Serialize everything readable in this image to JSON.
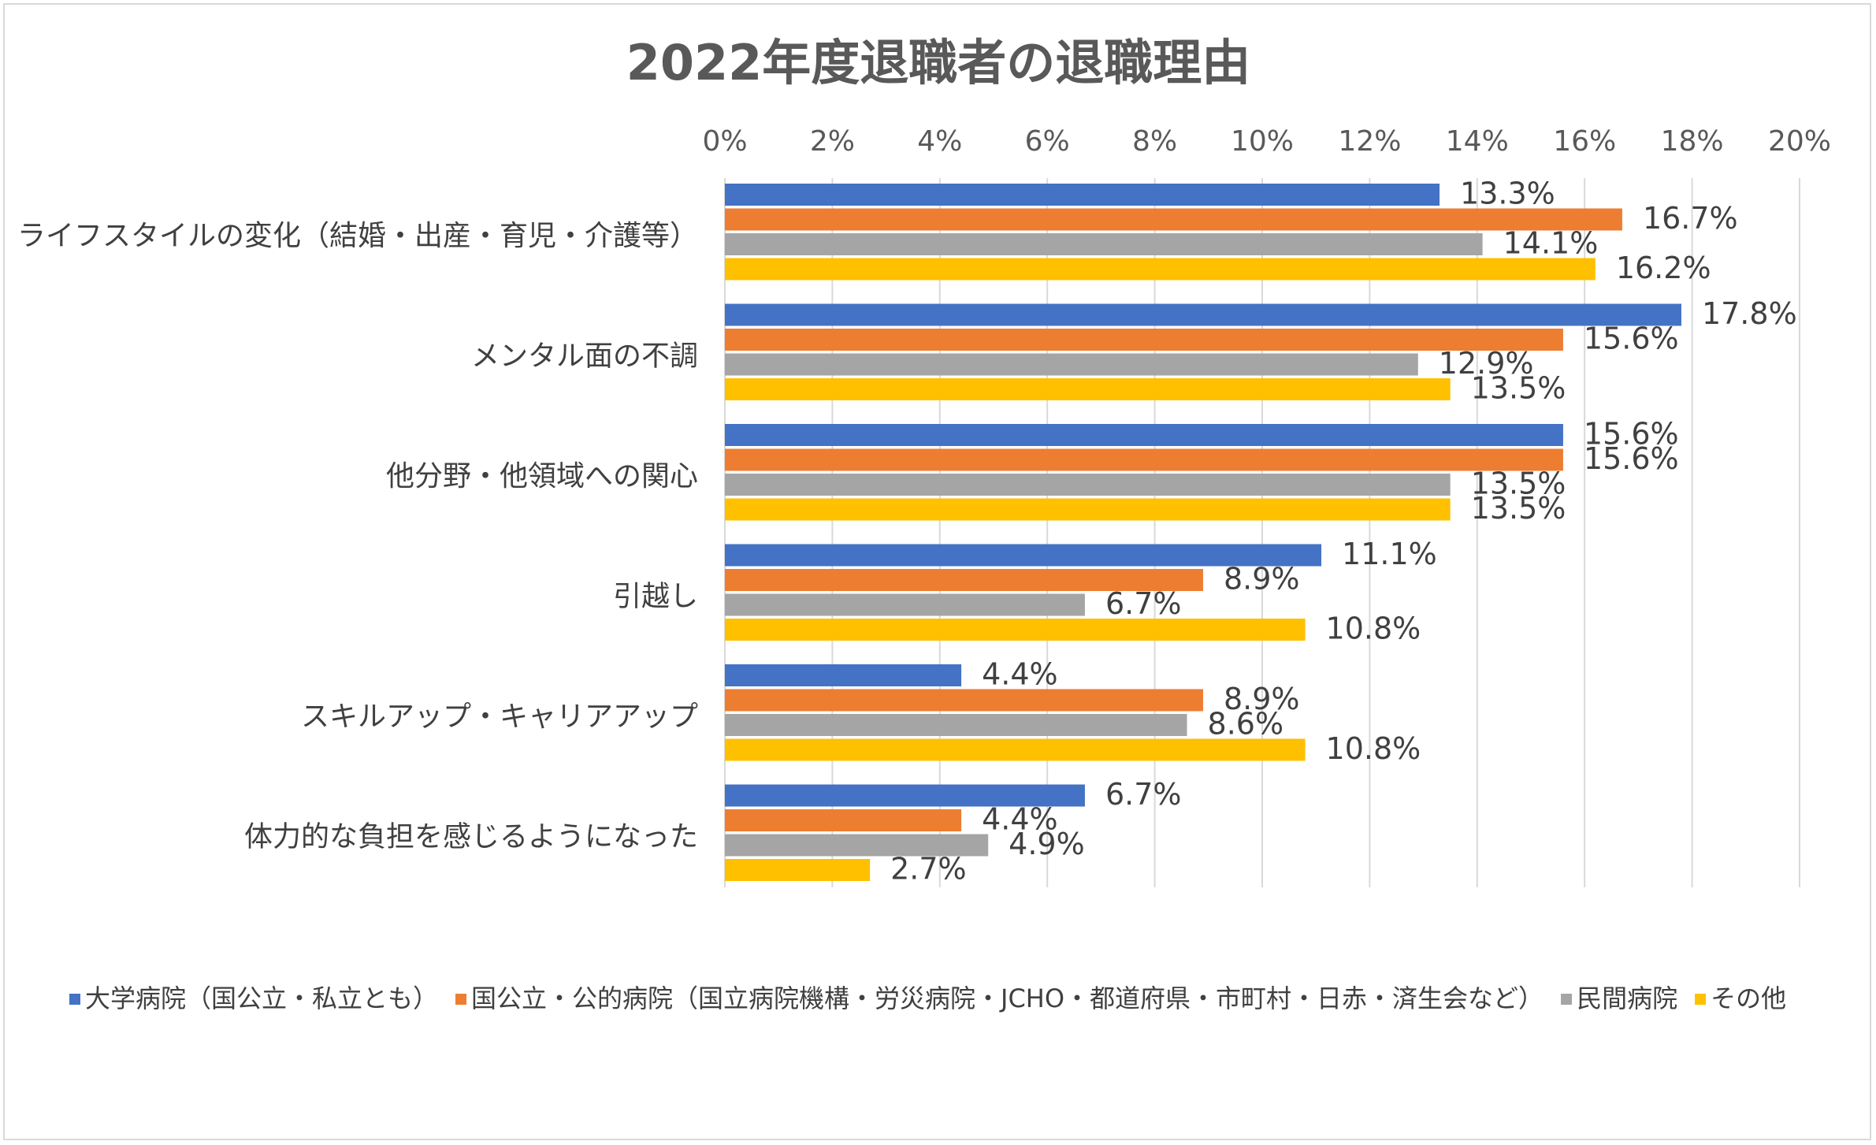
{
  "chart_data": {
    "type": "bar",
    "orientation": "horizontal",
    "title": "2022年度退職者の退職理由",
    "xlim": [
      0,
      20
    ],
    "xticks": [
      "0%",
      "2%",
      "4%",
      "6%",
      "8%",
      "10%",
      "12%",
      "14%",
      "16%",
      "18%",
      "20%"
    ],
    "grid": true,
    "legend_position": "bottom",
    "categories": [
      "ライフスタイルの変化（結婚・出産・育児・介護等）",
      "メンタル面の不調",
      "他分野・他領域への関心",
      "引越し",
      "スキルアップ・キャリアアップ",
      "体力的な負担を感じるようになった"
    ],
    "series": [
      {
        "name": "大学病院（国公立・私立とも）",
        "color": "#4472c4",
        "values": [
          13.3,
          17.8,
          15.6,
          11.1,
          4.4,
          6.7
        ],
        "labels": [
          "13.3%",
          "17.8%",
          "15.6%",
          "11.1%",
          "4.4%",
          "6.7%"
        ]
      },
      {
        "name": "国公立・公的病院（国立病院機構・労災病院・JCHO・都道府県・市町村・日赤・済生会など）",
        "color": "#ed7d31",
        "values": [
          16.7,
          15.6,
          15.6,
          8.9,
          8.9,
          4.4
        ],
        "labels": [
          "16.7%",
          "15.6%",
          "15.6%",
          "8.9%",
          "8.9%",
          "4.4%"
        ]
      },
      {
        "name": "民間病院",
        "color": "#a5a5a5",
        "values": [
          14.1,
          12.9,
          13.5,
          6.7,
          8.6,
          4.9
        ],
        "labels": [
          "14.1%",
          "12.9%",
          "13.5%",
          "6.7%",
          "8.6%",
          "4.9%"
        ]
      },
      {
        "name": "その他",
        "color": "#ffc000",
        "values": [
          16.2,
          13.5,
          13.5,
          10.8,
          10.8,
          2.7
        ],
        "labels": [
          "16.2%",
          "13.5%",
          "13.5%",
          "10.8%",
          "10.8%",
          "2.7%"
        ]
      }
    ]
  }
}
